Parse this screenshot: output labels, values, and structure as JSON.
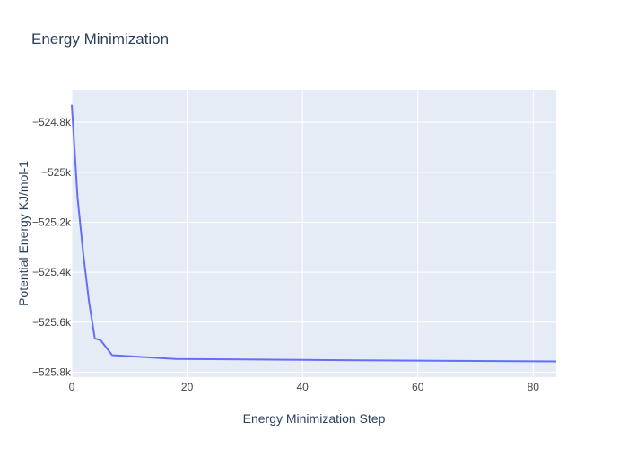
{
  "chart_data": {
    "type": "line",
    "title": "Energy Minimization",
    "xlabel": "Energy Minimization Step",
    "ylabel": "Potential Energy KJ/mol-1",
    "xlim": [
      0,
      84
    ],
    "ylim": [
      -525.82,
      -524.67
    ],
    "x_ticks": [
      0,
      20,
      40,
      60,
      80
    ],
    "x_tick_labels": [
      "0",
      "20",
      "40",
      "60",
      "80"
    ],
    "y_ticks": [
      -524.8,
      -525.0,
      -525.2,
      -525.4,
      -525.6,
      -525.8
    ],
    "y_tick_labels": [
      "−524.8k",
      "−525k",
      "−525.2k",
      "−525.4k",
      "−525.6k",
      "−525.8k"
    ],
    "grid": true,
    "legend": "none",
    "series": [
      {
        "color": "#636efa",
        "x": [
          0,
          1,
          2,
          3,
          4,
          5,
          7,
          18,
          40,
          60,
          84
        ],
        "y": [
          -524.73,
          -525.1,
          -525.33,
          -525.52,
          -525.665,
          -525.672,
          -525.732,
          -525.747,
          -525.751,
          -525.754,
          -525.757
        ]
      }
    ]
  },
  "colors": {
    "plot_background": "#e5ecf6",
    "grid": "#ffffff",
    "line": "#636efa",
    "text": "#2a3f5f",
    "tick_text": "#444444"
  }
}
